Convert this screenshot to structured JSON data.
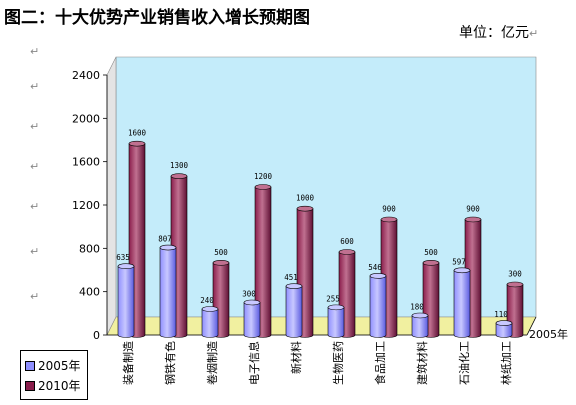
{
  "title": "图二：十大优势产业销售收入增长预期图",
  "unit_label": "单位：亿元",
  "return_mark": "↵",
  "colors": {
    "s2005_front": "#8f8fff",
    "s2005_side": "#5a5ae0",
    "s2005_top": "#c8c8ff",
    "s2010_front": "#8a1d4b",
    "s2010_side": "#5e0f33",
    "s2010_top": "#c07090",
    "back_wall": "#c4ecfa",
    "floor": "#f1f0a0"
  },
  "chart_data": {
    "type": "bar",
    "title": "图二：十大优势产业销售收入增长预期图",
    "categories": [
      "装备制造",
      "钢铁有色",
      "卷烟制造",
      "电子信息",
      "新材料",
      "生物医药",
      "食品加工",
      "建筑材料",
      "石油化工",
      "林纸加工"
    ],
    "series": [
      {
        "name": "2005年",
        "values": [
          635,
          807,
          240,
          300,
          451,
          255,
          546,
          180,
          597,
          110
        ],
        "labels": [
          "635",
          "807",
          "240",
          "300",
          "451",
          "255",
          "546",
          "180",
          "597",
          "110"
        ]
      },
      {
        "name": "2010年",
        "values": [
          1600,
          1300,
          500,
          1200,
          1000,
          600,
          900,
          500,
          900,
          300
        ],
        "labels": [
          "1600",
          "1300",
          "500",
          "1200",
          "1000",
          "600",
          "900",
          "500",
          "900",
          "300"
        ]
      }
    ],
    "ylim": [
      0,
      2400
    ],
    "yticks": [
      "0",
      "400",
      "800",
      "1200",
      "1600",
      "2000",
      "2400"
    ],
    "depth_axis_labels": [
      "2005年"
    ],
    "legend_position": "bottom-left",
    "grid": false
  }
}
